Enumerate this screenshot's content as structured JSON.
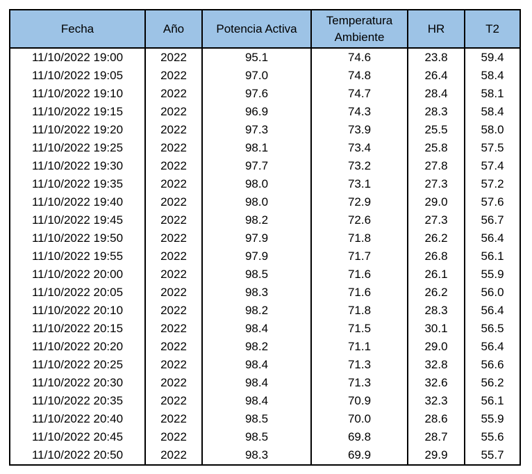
{
  "table": {
    "header_bg": "#9dc3e6",
    "columns": [
      {
        "lines": [
          "Fecha"
        ]
      },
      {
        "lines": [
          "Año"
        ]
      },
      {
        "lines": [
          "Potencia Activa"
        ]
      },
      {
        "lines": [
          "Temperatura",
          "Ambiente"
        ]
      },
      {
        "lines": [
          "HR"
        ]
      },
      {
        "lines": [
          "T2"
        ]
      }
    ],
    "rows": [
      [
        "11/10/2022 19:00",
        "2022",
        "95.1",
        "74.6",
        "23.8",
        "59.4"
      ],
      [
        "11/10/2022 19:05",
        "2022",
        "97.0",
        "74.8",
        "26.4",
        "58.4"
      ],
      [
        "11/10/2022 19:10",
        "2022",
        "97.6",
        "74.7",
        "28.4",
        "58.1"
      ],
      [
        "11/10/2022 19:15",
        "2022",
        "96.9",
        "74.3",
        "28.3",
        "58.4"
      ],
      [
        "11/10/2022 19:20",
        "2022",
        "97.3",
        "73.9",
        "25.5",
        "58.0"
      ],
      [
        "11/10/2022 19:25",
        "2022",
        "98.1",
        "73.4",
        "25.8",
        "57.5"
      ],
      [
        "11/10/2022 19:30",
        "2022",
        "97.7",
        "73.2",
        "27.8",
        "57.4"
      ],
      [
        "11/10/2022 19:35",
        "2022",
        "98.0",
        "73.1",
        "27.3",
        "57.2"
      ],
      [
        "11/10/2022 19:40",
        "2022",
        "98.0",
        "72.9",
        "29.0",
        "57.6"
      ],
      [
        "11/10/2022 19:45",
        "2022",
        "98.2",
        "72.6",
        "27.3",
        "56.7"
      ],
      [
        "11/10/2022 19:50",
        "2022",
        "97.9",
        "71.8",
        "26.2",
        "56.4"
      ],
      [
        "11/10/2022 19:55",
        "2022",
        "97.9",
        "71.7",
        "26.8",
        "56.1"
      ],
      [
        "11/10/2022 20:00",
        "2022",
        "98.5",
        "71.6",
        "26.1",
        "55.9"
      ],
      [
        "11/10/2022 20:05",
        "2022",
        "98.3",
        "71.6",
        "26.2",
        "56.0"
      ],
      [
        "11/10/2022 20:10",
        "2022",
        "98.2",
        "71.8",
        "28.3",
        "56.4"
      ],
      [
        "11/10/2022 20:15",
        "2022",
        "98.4",
        "71.5",
        "30.1",
        "56.5"
      ],
      [
        "11/10/2022 20:20",
        "2022",
        "98.2",
        "71.1",
        "29.0",
        "56.4"
      ],
      [
        "11/10/2022 20:25",
        "2022",
        "98.4",
        "71.3",
        "32.8",
        "56.6"
      ],
      [
        "11/10/2022 20:30",
        "2022",
        "98.4",
        "71.3",
        "32.6",
        "56.2"
      ],
      [
        "11/10/2022 20:35",
        "2022",
        "98.4",
        "70.9",
        "32.3",
        "56.1"
      ],
      [
        "11/10/2022 20:40",
        "2022",
        "98.5",
        "70.0",
        "28.6",
        "55.9"
      ],
      [
        "11/10/2022 20:45",
        "2022",
        "98.5",
        "69.8",
        "28.7",
        "55.6"
      ],
      [
        "11/10/2022 20:50",
        "2022",
        "98.3",
        "69.9",
        "29.9",
        "55.7"
      ]
    ]
  }
}
